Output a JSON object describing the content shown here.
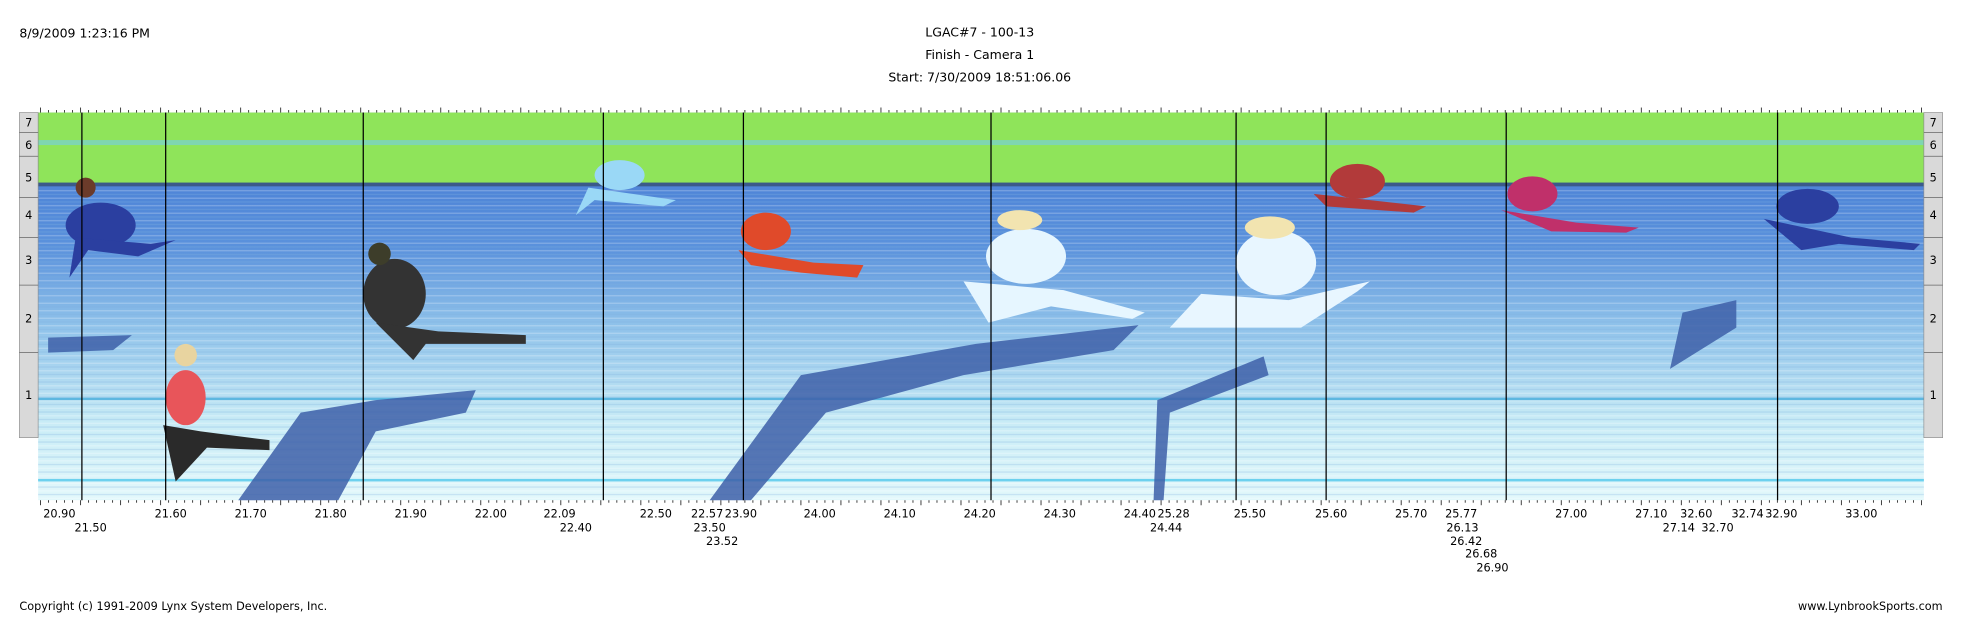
{
  "header": {
    "timestamp": "8/9/2009 1:23:16 PM",
    "title": "LGAC#7 - 100-13",
    "subtitle": "Finish - Camera 1",
    "start": "Start: 7/30/2009 18:51:06.06"
  },
  "lanes": [
    "7",
    "6",
    "5",
    "4",
    "3",
    "2",
    "1"
  ],
  "time_labels": [
    "20.90",
    "21.60",
    "21.70",
    "21.80",
    "21.90",
    "22.00",
    "22.09",
    "22.50",
    "22.57",
    "23.90",
    "24.00",
    "24.10",
    "24.20",
    "24.30",
    "24.40",
    "25.28",
    "25.50",
    "25.60",
    "25.70",
    "25.77",
    "27.00",
    "27.10",
    "32.60",
    "32.74",
    "32.90",
    "33.00",
    "21.50",
    "22.40",
    "23.50",
    "24.44",
    "26.13",
    "27.14",
    "32.70",
    "23.52",
    "26.42",
    "26.68",
    "26.90"
  ],
  "footer": {
    "copyright": "Copyright (c) 1991-2009 Lynx System Developers, Inc.",
    "website": "www.LynbrookSports.com"
  }
}
